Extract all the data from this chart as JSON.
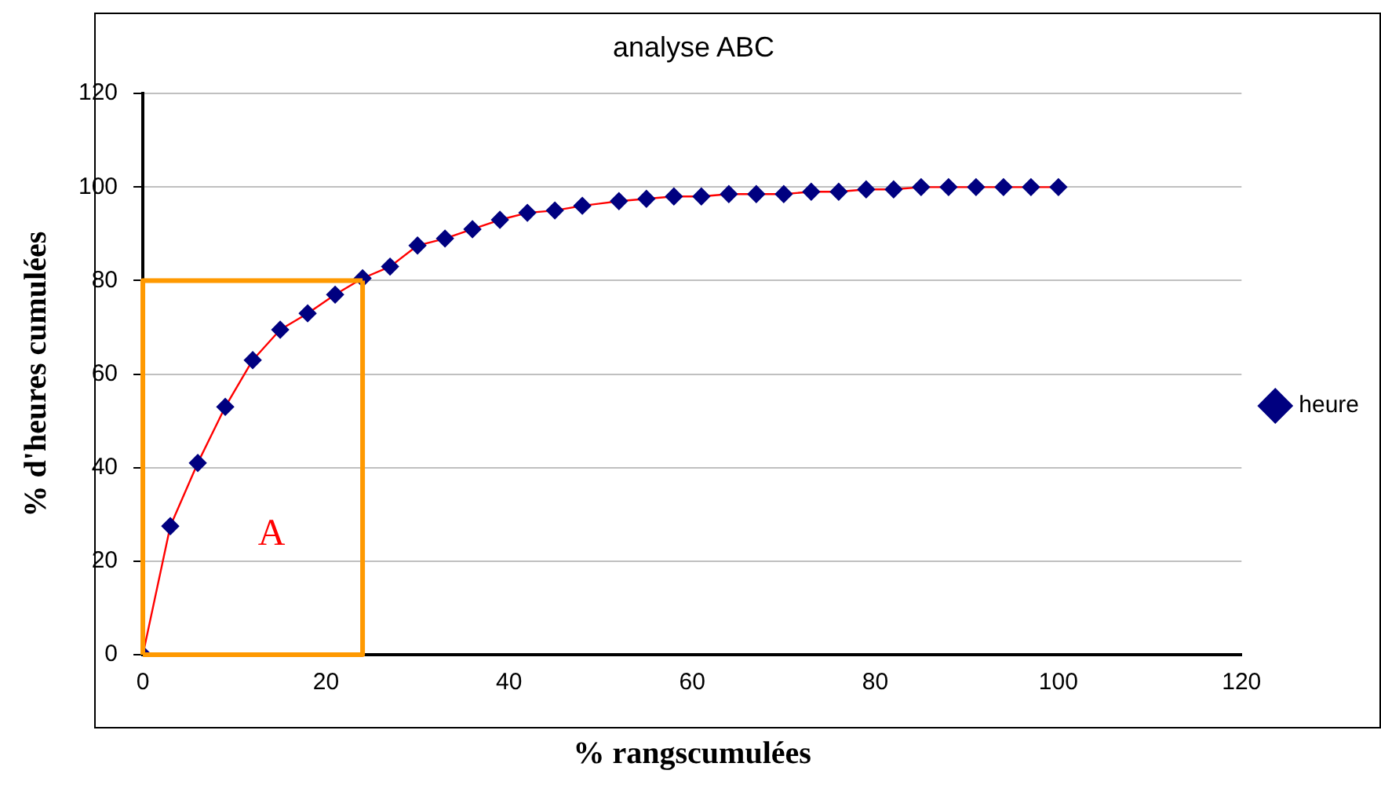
{
  "chart_data": {
    "type": "line",
    "title": "analyse ABC",
    "xlabel": "% rangscumulées",
    "ylabel": "% d'heures cumulées",
    "x": [
      0,
      3,
      6,
      9,
      12,
      15,
      18,
      21,
      24,
      27,
      30,
      33,
      36,
      39,
      42,
      45,
      48,
      52,
      55,
      58,
      61,
      64,
      67,
      70,
      73,
      76,
      79,
      82,
      85,
      88,
      91,
      94,
      97,
      100
    ],
    "series": [
      {
        "name": "heure",
        "color": "#ff0000",
        "values": [
          0,
          27.5,
          41,
          53,
          63,
          69.5,
          73,
          77,
          80.5,
          83,
          87.5,
          89,
          91,
          93,
          94.5,
          95,
          96,
          97,
          97.5,
          98,
          98,
          98.5,
          98.5,
          98.5,
          99,
          99,
          99.5,
          99.5,
          100,
          100,
          100,
          100,
          100,
          100
        ]
      }
    ],
    "xlim": [
      0,
      120
    ],
    "xticks": [
      0,
      20,
      40,
      60,
      80,
      100,
      120
    ],
    "ylim": [
      0,
      120
    ],
    "yticks": [
      0,
      20,
      40,
      60,
      80,
      100,
      120
    ],
    "grid": "y",
    "legend": "right",
    "marker": "diamond",
    "line_style": "solid",
    "ref_lines": [
      {
        "axis": "x",
        "value": 24,
        "color": "#ff9900"
      },
      {
        "axis": "y",
        "value": 80,
        "color": "#ff9900"
      }
    ],
    "annotations": [
      "A"
    ]
  }
}
